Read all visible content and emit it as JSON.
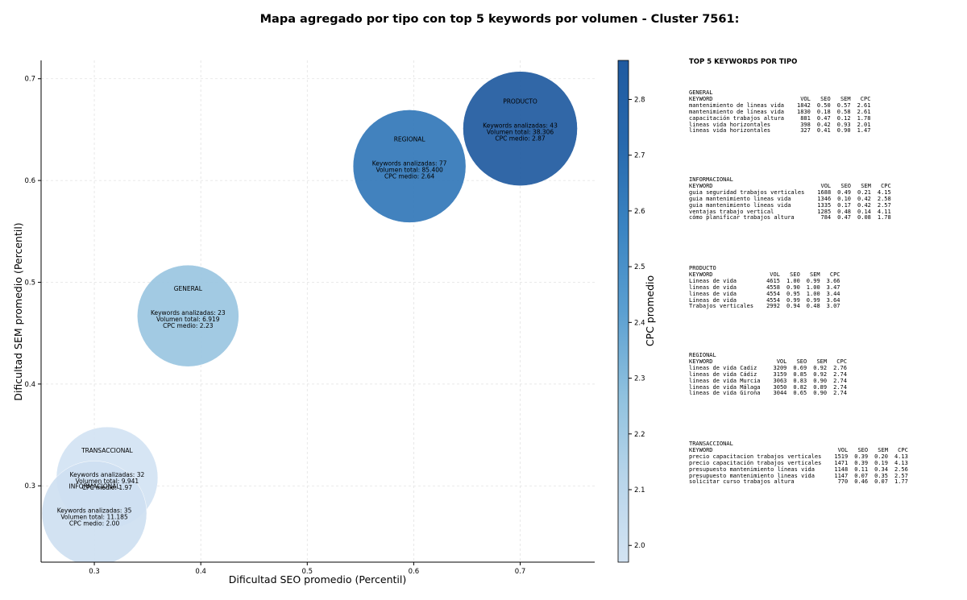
{
  "chart_data": {
    "type": "scatter",
    "title": "Mapa agregado por tipo con top 5 keywords por volumen - Cluster 7561:",
    "xlabel": "Dificultad SEO promedio (Percentil)",
    "ylabel": "Dificultad SEM promedio (Percentil)",
    "colorbar_label": "CPC promedio",
    "xlim": [
      0.25,
      0.77
    ],
    "ylim": [
      0.225,
      0.718
    ],
    "xticks": [
      0.3,
      0.4,
      0.5,
      0.6,
      0.7
    ],
    "yticks": [
      0.3,
      0.4,
      0.5,
      0.6,
      0.7
    ],
    "cbar_range": [
      1.97,
      2.87
    ],
    "cbar_ticks": [
      2.0,
      2.1,
      2.2,
      2.3,
      2.4,
      2.5,
      2.6,
      2.7,
      2.8
    ],
    "grid": true,
    "points": [
      {
        "type": "TRANSACCIONAL",
        "x": 0.312,
        "y": 0.308,
        "keywords_line": "Keywords analizadas: 32",
        "volume_line": "Volumen total: 9.941",
        "cpc_line": "CPC medio: 1.97",
        "cpc": 1.97,
        "volume": 9941,
        "size": 63
      },
      {
        "type": "INFORMACIONAL",
        "x": 0.3,
        "y": 0.273,
        "keywords_line": "Keywords analizadas: 35",
        "volume_line": "Volumen total: 11.185",
        "cpc_line": "CPC medio: 2.00",
        "cpc": 2.0,
        "volume": 11185,
        "size": 65
      },
      {
        "type": "GENERAL",
        "x": 0.388,
        "y": 0.467,
        "keywords_line": "Keywords analizadas: 23",
        "volume_line": "Volumen total: 6.919",
        "cpc_line": "CPC medio: 2.23",
        "cpc": 2.23,
        "volume": 6919,
        "size": 63
      },
      {
        "type": "REGIONAL",
        "x": 0.596,
        "y": 0.614,
        "keywords_line": "Keywords analizadas: 77",
        "volume_line": "Volumen total: 85.400",
        "cpc_line": "CPC medio: 2.64",
        "cpc": 2.64,
        "volume": 85400,
        "size": 70
      },
      {
        "type": "PRODUCTO",
        "x": 0.7,
        "y": 0.651,
        "keywords_line": "Keywords analizadas: 43",
        "volume_line": "Volumen total: 38.306",
        "cpc_line": "CPC medio: 2.87",
        "cpc": 2.87,
        "volume": 38306,
        "size": 71
      }
    ]
  },
  "panel": {
    "title": "TOP 5 KEYWORDS POR TIPO",
    "header": {
      "keyword": "KEYWORD",
      "vol": "VOL",
      "seo": "SEO",
      "sem": "SEM",
      "cpc": "CPC"
    },
    "blocks": [
      {
        "type": "GENERAL",
        "rows": [
          {
            "keyword": "mantenimiento de lineas vida",
            "vol": "1842",
            "seo": "0.50",
            "sem": "0.57",
            "cpc": "2.61"
          },
          {
            "keyword": "mantenimiento de líneas vida",
            "vol": "1830",
            "seo": "0.18",
            "sem": "0.58",
            "cpc": "2.61"
          },
          {
            "keyword": "capacitación trabajos altura",
            "vol": "881",
            "seo": "0.47",
            "sem": "0.12",
            "cpc": "1.78"
          },
          {
            "keyword": "lineas vida horizontales",
            "vol": "398",
            "seo": "0.42",
            "sem": "0.93",
            "cpc": "2.01"
          },
          {
            "keyword": "líneas vida horizontales",
            "vol": "327",
            "seo": "0.41",
            "sem": "0.90",
            "cpc": "1.47"
          }
        ]
      },
      {
        "type": "INFORMACIONAL",
        "rows": [
          {
            "keyword": "guia seguridad trabajos verticales",
            "vol": "1688",
            "seo": "0.49",
            "sem": "0.21",
            "cpc": "4.15"
          },
          {
            "keyword": "guia mantenimiento lineas vida",
            "vol": "1346",
            "seo": "0.10",
            "sem": "0.42",
            "cpc": "2.58"
          },
          {
            "keyword": "guia mantenimiento líneas vida",
            "vol": "1335",
            "seo": "0.17",
            "sem": "0.42",
            "cpc": "2.57"
          },
          {
            "keyword": "ventajas trabajo vertical",
            "vol": "1285",
            "seo": "0.48",
            "sem": "0.14",
            "cpc": "4.11"
          },
          {
            "keyword": "cómo planificar trabajos altura",
            "vol": "784",
            "seo": "0.47",
            "sem": "0.08",
            "cpc": "1.78"
          }
        ]
      },
      {
        "type": "PRODUCTO",
        "rows": [
          {
            "keyword": "Lineas de vida",
            "vol": "4615",
            "seo": "1.00",
            "sem": "0.99",
            "cpc": "3.66"
          },
          {
            "keyword": "líneas de vida",
            "vol": "4558",
            "seo": "0.90",
            "sem": "1.00",
            "cpc": "3.47"
          },
          {
            "keyword": "lineas de vida",
            "vol": "4554",
            "seo": "0.95",
            "sem": "1.00",
            "cpc": "3.44"
          },
          {
            "keyword": "Líneas de vida",
            "vol": "4554",
            "seo": "0.99",
            "sem": "0.99",
            "cpc": "3.64"
          },
          {
            "keyword": "Trabajos verticales",
            "vol": "2992",
            "seo": "0.94",
            "sem": "0.48",
            "cpc": "3.07"
          }
        ]
      },
      {
        "type": "REGIONAL",
        "rows": [
          {
            "keyword": "lineas de vida Cadiz",
            "vol": "3209",
            "seo": "0.69",
            "sem": "0.92",
            "cpc": "2.76"
          },
          {
            "keyword": "lineas de vida Cádiz",
            "vol": "3159",
            "seo": "0.85",
            "sem": "0.92",
            "cpc": "2.74"
          },
          {
            "keyword": "líneas de vida Murcia",
            "vol": "3063",
            "seo": "0.83",
            "sem": "0.90",
            "cpc": "2.74"
          },
          {
            "keyword": "lineas de vida Málaga",
            "vol": "3050",
            "seo": "0.82",
            "sem": "0.89",
            "cpc": "2.74"
          },
          {
            "keyword": "lineas de vida Girona",
            "vol": "3044",
            "seo": "0.65",
            "sem": "0.90",
            "cpc": "2.74"
          }
        ]
      },
      {
        "type": "TRANSACCIONAL",
        "rows": [
          {
            "keyword": "precio capacitacion trabajos verticales",
            "vol": "1519",
            "seo": "0.39",
            "sem": "0.20",
            "cpc": "4.13"
          },
          {
            "keyword": "precio capacitación trabajos verticales",
            "vol": "1471",
            "seo": "0.39",
            "sem": "0.19",
            "cpc": "4.13"
          },
          {
            "keyword": "presupuesto mantenimiento líneas vida",
            "vol": "1148",
            "seo": "0.11",
            "sem": "0.34",
            "cpc": "2.56"
          },
          {
            "keyword": "presupuesto mantenimiento lineas vida",
            "vol": "1147",
            "seo": "0.07",
            "sem": "0.35",
            "cpc": "2.57"
          },
          {
            "keyword": "solicitar curso trabajos altura",
            "vol": "770",
            "seo": "0.46",
            "sem": "0.07",
            "cpc": "1.77"
          }
        ]
      }
    ]
  },
  "colors": {
    "scale": [
      "#d3e3f3",
      "#b8d5ea",
      "#8fc1de",
      "#5b9fd1",
      "#3a84c2",
      "#2869ad",
      "#1f5aa0"
    ],
    "grid": "#e2e2e2",
    "axis": "#000000"
  }
}
